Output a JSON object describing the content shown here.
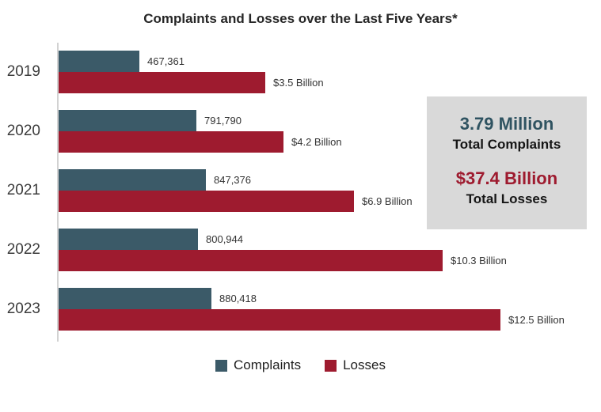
{
  "title": "Complaints and Losses over the Last Five Years*",
  "chart_data": {
    "type": "bar",
    "orientation": "horizontal",
    "title": "Complaints and Losses over the Last Five Years*",
    "categories": [
      "2019",
      "2020",
      "2021",
      "2022",
      "2023"
    ],
    "series": [
      {
        "name": "Complaints",
        "color": "#3b5a68",
        "values": [
          467361,
          791790,
          847376,
          800944,
          880418
        ],
        "labels": [
          "467,361",
          "791,790",
          "847,376",
          "800,944",
          "880,418"
        ]
      },
      {
        "name": "Losses",
        "color": "#9e1b2f",
        "unit": "Billion USD",
        "values": [
          3.5,
          4.2,
          6.9,
          10.3,
          12.5
        ],
        "labels": [
          "$3.5 Billion",
          "$4.2 Billion",
          "$6.9 Billion",
          "$10.3 Billion",
          "$12.5 Billion"
        ]
      }
    ],
    "legend_position": "bottom",
    "grid": false
  },
  "summary_box": {
    "background": "#d9d9d9",
    "complaints_value": "3.79 Million",
    "complaints_label": "Total Complaints",
    "complaints_color": "#2f5361",
    "losses_value": "$37.4 Billion",
    "losses_label": "Total Losses",
    "losses_color": "#9e1b2f"
  },
  "legend": {
    "items": [
      {
        "label": "Complaints",
        "color": "#3b5a68"
      },
      {
        "label": "Losses",
        "color": "#9e1b2f"
      }
    ]
  }
}
